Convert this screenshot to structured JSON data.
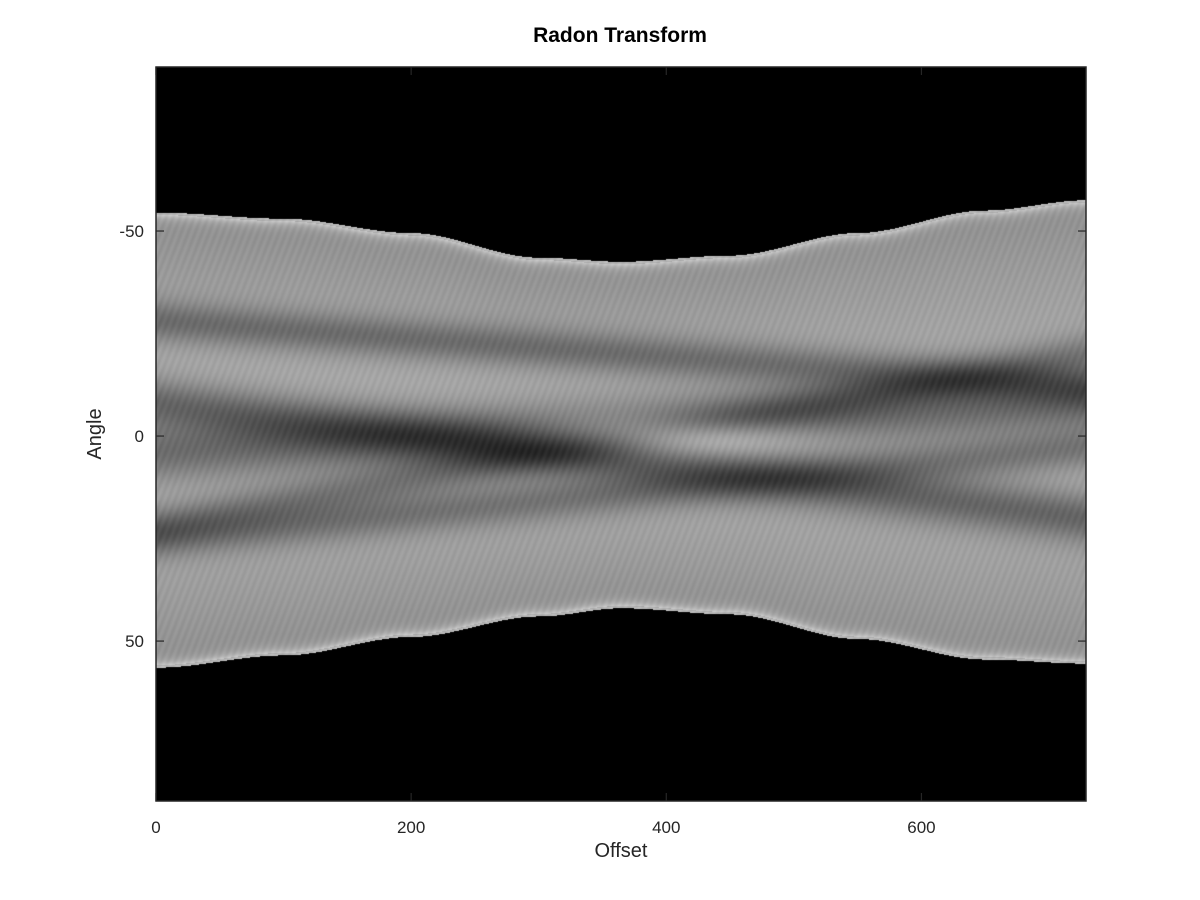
{
  "chart_data": {
    "type": "heatmap",
    "title": "Radon Transform",
    "xlabel": "Offset",
    "ylabel": "Angle",
    "colormap": "gray",
    "background_color": "#000000",
    "xlim": [
      0,
      729
    ],
    "ylim": [
      -90,
      89
    ],
    "y_reversed": true,
    "xticks": [
      0,
      200,
      400,
      600
    ],
    "xtick_labels": [
      "0",
      "200",
      "400",
      "600"
    ],
    "yticks": [
      -50,
      0,
      50
    ],
    "ytick_labels": [
      "-50",
      "0",
      "50"
    ],
    "grid": false,
    "envelope": {
      "x": [
        0,
        100,
        200,
        300,
        365,
        450,
        550,
        650,
        729
      ],
      "angle_top": [
        -54.5,
        -53,
        -49.5,
        -43.5,
        -42.5,
        -44,
        -49.5,
        -55,
        -57.5
      ],
      "angle_bottom": [
        56.5,
        53.5,
        49,
        44,
        42,
        43.5,
        49.5,
        54.5,
        55.5
      ]
    },
    "bright_peak": {
      "x": 400,
      "angle": 0,
      "intensity": 1.0
    },
    "bands": [
      {
        "a0": -8,
        "a1": 20,
        "width": 6,
        "dark": 0.26,
        "_c": "dark diagonal band through left interior"
      },
      {
        "a0": -28,
        "a1": -12,
        "width": 5,
        "dark": 0.22
      },
      {
        "a0": 25,
        "a1": 3,
        "width": 5,
        "dark": 0.2
      },
      {
        "a0": 22,
        "a1": -20,
        "width": 5,
        "dark": 0.18
      },
      {
        "a0": 4,
        "a1": -8,
        "width": 7,
        "dark": 0.24
      }
    ]
  }
}
